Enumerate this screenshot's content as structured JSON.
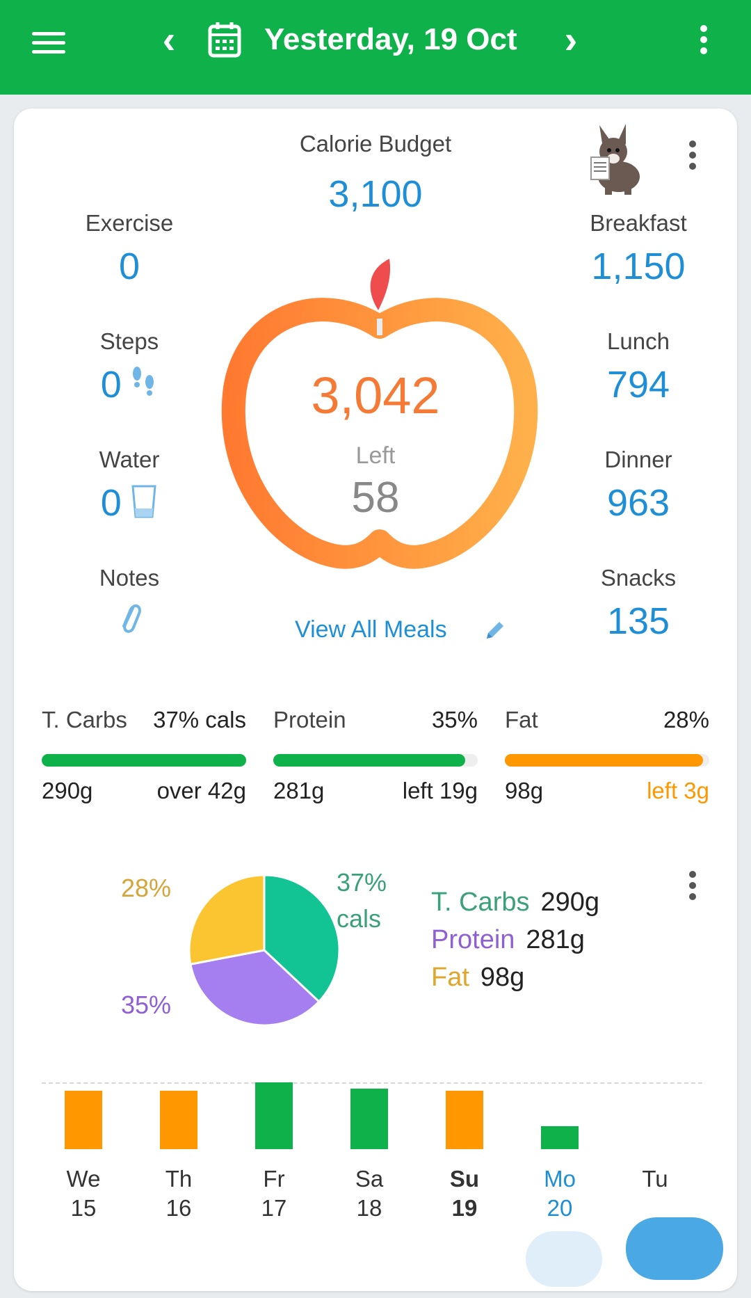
{
  "header": {
    "date": "Yesterday, 19 Oct"
  },
  "summary": {
    "budget_label": "Calorie Budget",
    "budget_value": "3,100",
    "eaten": "3,042",
    "left_label": "Left",
    "left_value": "58",
    "view_all": "View All Meals"
  },
  "left_stats": [
    {
      "label": "Exercise",
      "value": "0"
    },
    {
      "label": "Steps",
      "value": "0"
    },
    {
      "label": "Water",
      "value": "0"
    },
    {
      "label": "Notes",
      "value": ""
    }
  ],
  "right_stats": [
    {
      "label": "Breakfast",
      "value": "1,150"
    },
    {
      "label": "Lunch",
      "value": "794"
    },
    {
      "label": "Dinner",
      "value": "963"
    },
    {
      "label": "Snacks",
      "value": "135"
    }
  ],
  "macros": [
    {
      "name": "T. Carbs",
      "pct": "37% cals",
      "grams": "290g",
      "remaining": "over 42g",
      "fill": 1.0,
      "color": "#0fb14a",
      "remaining_color": "#222222"
    },
    {
      "name": "Protein",
      "pct": "35%",
      "grams": "281g",
      "remaining": "left 19g",
      "fill": 0.94,
      "color": "#0fb14a",
      "remaining_color": "#222222"
    },
    {
      "name": "Fat",
      "pct": "28%",
      "grams": "98g",
      "remaining": "left 3g",
      "fill": 0.97,
      "color": "#ff9800",
      "remaining_color": "#ff9800"
    }
  ],
  "chart_data": {
    "type": "pie",
    "slices": [
      {
        "name": "T. Carbs",
        "value": 37,
        "color": "#12c493"
      },
      {
        "name": "Protein",
        "value": 35,
        "color": "#a57ef0"
      },
      {
        "name": "Fat",
        "value": 28,
        "color": "#fbc532"
      }
    ],
    "slice_labels": {
      "carbs": "37%",
      "carbs_unit": "cals",
      "protein": "35%",
      "fat": "28%"
    },
    "legend": [
      {
        "name": "T. Carbs",
        "grams": "290g",
        "color": "#3aa07a"
      },
      {
        "name": "Protein",
        "grams": "281g",
        "color": "#8f5fd6"
      },
      {
        "name": "Fat",
        "grams": "98g",
        "color": "#e0a62b"
      }
    ]
  },
  "week": {
    "days": [
      {
        "dow": "We",
        "dom": "15",
        "value": 0.28,
        "color": "#ff9800",
        "bold": false,
        "accent": false
      },
      {
        "dow": "Th",
        "dom": "16",
        "value": 0.28,
        "color": "#ff9800",
        "bold": false,
        "accent": false
      },
      {
        "dow": "Fr",
        "dom": "17",
        "value": 0.32,
        "color": "#0fb14a",
        "bold": false,
        "accent": false
      },
      {
        "dow": "Sa",
        "dom": "18",
        "value": 0.29,
        "color": "#0fb14a",
        "bold": false,
        "accent": false
      },
      {
        "dow": "Su",
        "dom": "19",
        "value": 0.28,
        "color": "#ff9800",
        "bold": true,
        "accent": false
      },
      {
        "dow": "Mo",
        "dom": "20",
        "value": 0.11,
        "color": "#0fb14a",
        "bold": false,
        "accent": true
      },
      {
        "dow": "Tu",
        "dom": "",
        "value": 0,
        "color": "#0fb14a",
        "bold": false,
        "accent": false
      }
    ]
  }
}
